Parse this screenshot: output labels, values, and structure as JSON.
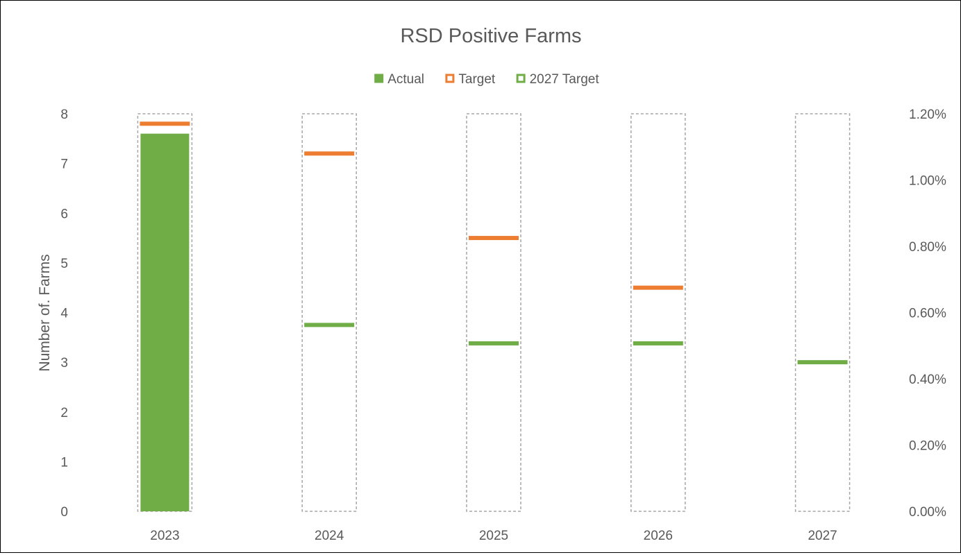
{
  "chart_data": {
    "type": "bar",
    "title": "RSD Positive Farms",
    "ylabel": "Number of. Farms",
    "categories": [
      "2023",
      "2024",
      "2025",
      "2026",
      "2027"
    ],
    "ylim": [
      0,
      8
    ],
    "y_ticks": [
      "0",
      "1",
      "2",
      "3",
      "4",
      "5",
      "6",
      "7",
      "8"
    ],
    "y2lim": [
      0,
      0.012
    ],
    "y2_ticks": [
      "0.00%",
      "0.20%",
      "0.40%",
      "0.60%",
      "0.80%",
      "1.00%",
      "1.20%"
    ],
    "legend_position": "top",
    "grid": false,
    "series": [
      {
        "name": "Actual",
        "kind": "bar",
        "color": "#70AD47",
        "values": [
          7.6,
          null,
          null,
          null,
          null
        ]
      },
      {
        "name": "Target",
        "kind": "marker",
        "color": "#ED7D31",
        "values": [
          7.8,
          7.2,
          5.5,
          4.5,
          null
        ]
      },
      {
        "name": "2027 Target",
        "kind": "marker",
        "color": "#70AD47",
        "values": [
          null,
          3.75,
          3.38,
          3.38,
          3.0
        ]
      }
    ],
    "capacity": {
      "values": [
        8,
        8,
        8,
        8,
        8
      ],
      "color": "#A6A6A6"
    }
  }
}
